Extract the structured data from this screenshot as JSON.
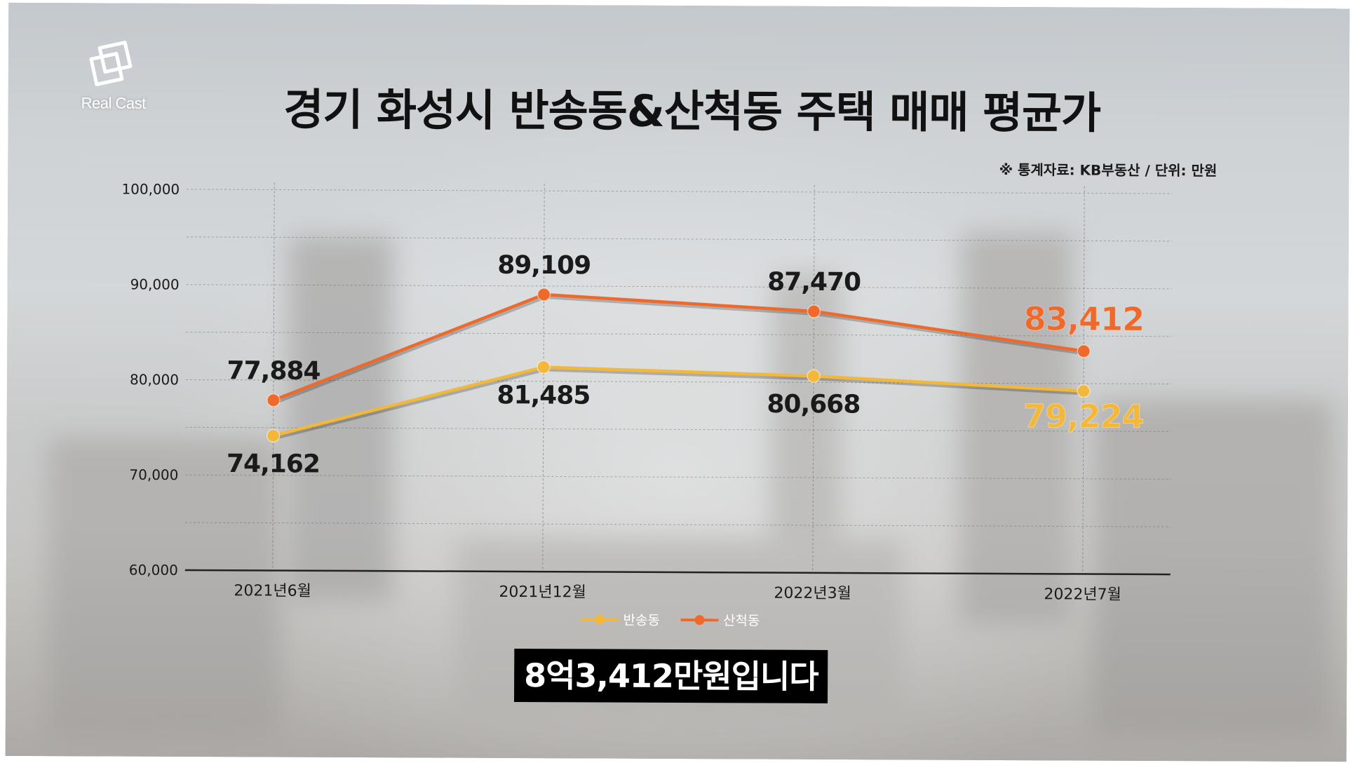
{
  "logo": {
    "text": "Real Cast"
  },
  "title": "경기 화성시 반송동&산척동 주택 매매 평균가",
  "source_note": "※ 통계자료: KB부동산 / 단위: 만원",
  "caption": "8억3,412만원입니다",
  "colors": {
    "bansong": "#f2b83c",
    "sancheok": "#ef6a2a",
    "label_dark": "#1a1a1a"
  },
  "chart_data": {
    "type": "line",
    "title": "경기 화성시 반송동&산척동 주택 매매 평균가",
    "categories": [
      "2021년6월",
      "2021년12월",
      "2022년3월",
      "2022년7월"
    ],
    "ylim": [
      60000,
      100000
    ],
    "yticks": [
      60000,
      70000,
      80000,
      90000,
      100000
    ],
    "ytick_labels": [
      "60,000",
      "70,000",
      "80,000",
      "90,000",
      "100,000"
    ],
    "grid": true,
    "legend_position": "bottom",
    "series": [
      {
        "name": "반송동",
        "color": "#f2b83c",
        "values": [
          74162,
          81485,
          80668,
          79224
        ],
        "labels": [
          "74,162",
          "81,485",
          "80,668",
          "79,224"
        ],
        "highlight_last": true
      },
      {
        "name": "산척동",
        "color": "#ef6a2a",
        "values": [
          77884,
          89109,
          87470,
          83412
        ],
        "labels": [
          "77,884",
          "89,109",
          "87,470",
          "83,412"
        ],
        "highlight_last": true
      }
    ]
  }
}
